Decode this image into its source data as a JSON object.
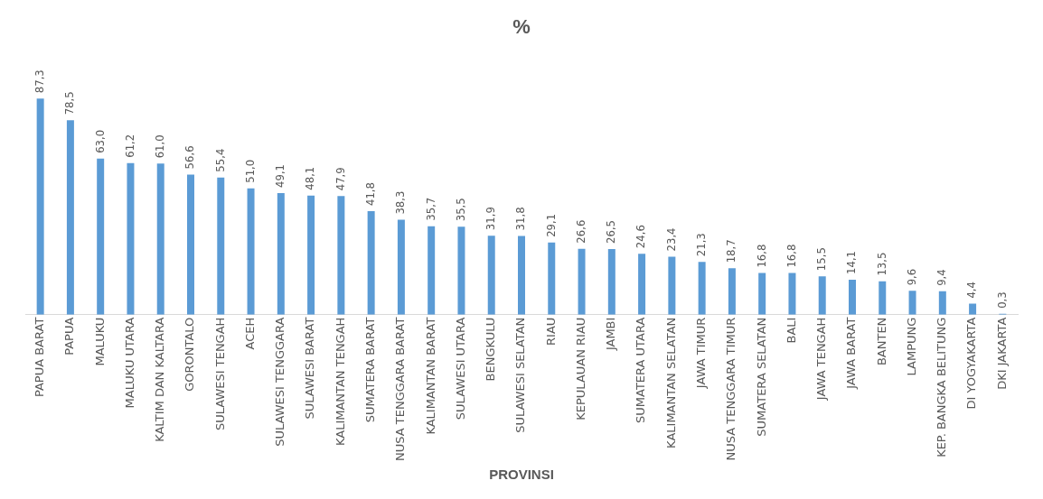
{
  "chart_data": {
    "type": "bar",
    "title": "%",
    "xlabel": "PROVINSI",
    "categories": [
      "PAPUA BARAT",
      "PAPUA",
      "MALUKU",
      "MALUKU UTARA",
      "KALTIM DAN KALTARA",
      "GORONTALO",
      "SULAWESI TENGAH",
      "ACEH",
      "SULAWESI TENGGARA",
      "SULAWESI BARAT",
      "KALIMANTAN TENGAH",
      "SUMATERA BARAT",
      "NUSA TENGGARA BARAT",
      "KALIMANTAN BARAT",
      "SULAWESI UTARA",
      "BENGKULU",
      "SULAWESI SELATAN",
      "RIAU",
      "KEPULAUAN RIAU",
      "JAMBI",
      "SUMATERA UTARA",
      "KALIMANTAN SELATAN",
      "JAWA TIMUR",
      "NUSA TENGGARA TIMUR",
      "SUMATERA SELATAN",
      "BALI",
      "JAWA TENGAH",
      "JAWA BARAT",
      "BANTEN",
      "LAMPUNG",
      "KEP. BANGKA BELITUNG",
      "DI YOGYAKARTA",
      "DKI JAKARTA"
    ],
    "values": [
      87.3,
      78.5,
      63.0,
      61.2,
      61.0,
      56.6,
      55.4,
      51.0,
      49.1,
      48.1,
      47.9,
      41.8,
      38.3,
      35.7,
      35.5,
      31.9,
      31.8,
      29.1,
      26.6,
      26.5,
      24.6,
      23.4,
      21.3,
      18.7,
      16.8,
      16.8,
      15.5,
      14.1,
      13.5,
      9.6,
      9.4,
      4.4,
      0.3
    ],
    "value_labels": [
      "87,3",
      "78,5",
      "63,0",
      "61,2",
      "61,0",
      "56,6",
      "55,4",
      "51,0",
      "49,1",
      "48,1",
      "47,9",
      "41,8",
      "38,3",
      "35,7",
      "35,5",
      "31,9",
      "31,8",
      "29,1",
      "26,6",
      "26,5",
      "24,6",
      "23,4",
      "21,3",
      "18,7",
      "16,8",
      "16,8",
      "15,5",
      "14,1",
      "13,5",
      "9,6",
      "9,4",
      "4,4",
      "0,3"
    ],
    "color": "#5b9bd5",
    "grid": false,
    "legend": false
  }
}
